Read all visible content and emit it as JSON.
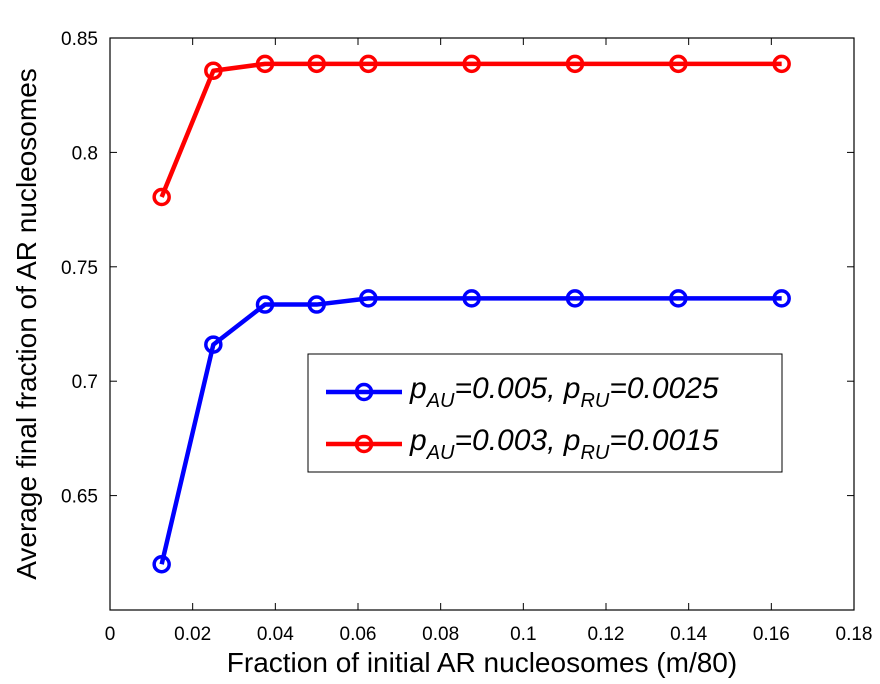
{
  "chart_data": {
    "type": "line",
    "title": "",
    "xlabel": "Fraction of initial AR nucleosomes (m/80)",
    "ylabel": "Average final fraction of AR nucleosomes",
    "xlim": [
      0,
      0.18
    ],
    "ylim": [
      0.6,
      0.85
    ],
    "xticks": [
      0,
      0.02,
      0.04,
      0.06,
      0.08,
      0.1,
      0.12,
      0.14,
      0.16,
      0.18
    ],
    "xtick_labels": [
      "0",
      "0.02",
      "0.04",
      "0.06",
      "0.08",
      "0.1",
      "0.12",
      "0.14",
      "0.16",
      "0.18"
    ],
    "yticks": [
      0.65,
      0.7,
      0.75,
      0.8,
      0.85
    ],
    "ytick_labels": [
      "0.65",
      "0.7",
      "0.75",
      "0.8",
      "0.85"
    ],
    "grid": false,
    "legend_position": "right",
    "x": [
      0.0125,
      0.025,
      0.0375,
      0.05,
      0.0625,
      0.0875,
      0.1125,
      0.1375,
      0.1625
    ],
    "series": [
      {
        "legend_parts": [
          [
            "p",
            "AU",
            "=0.005, "
          ],
          [
            "p",
            "RU",
            "=0.0025"
          ]
        ],
        "color": "#0000ff",
        "values": [
          0.62,
          0.716,
          0.7335,
          0.7335,
          0.7362,
          0.7362,
          0.7362,
          0.7362,
          0.7362
        ]
      },
      {
        "legend_parts": [
          [
            "p",
            "AU",
            "=0.003, "
          ],
          [
            "p",
            "RU",
            "=0.0015"
          ]
        ],
        "color": "#ff0000",
        "values": [
          0.7805,
          0.8357,
          0.8387,
          0.8387,
          0.8387,
          0.8387,
          0.8387,
          0.8387,
          0.8387
        ]
      }
    ]
  }
}
